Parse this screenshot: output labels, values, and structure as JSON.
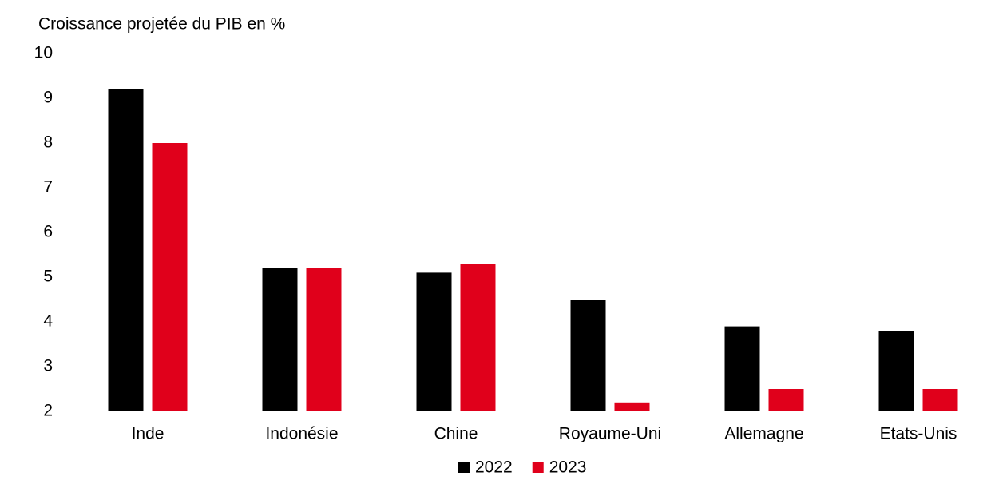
{
  "chart_data": {
    "type": "bar",
    "title": "Croissance projetée du PIB en %",
    "categories": [
      "Inde",
      "Indonésie",
      "Chine",
      "Royaume-Uni",
      "Allemagne",
      "Etats-Unis"
    ],
    "series": [
      {
        "name": "2022",
        "color": "#000000",
        "values": [
          9.2,
          5.2,
          5.1,
          4.5,
          3.9,
          3.8
        ]
      },
      {
        "name": "2023",
        "color": "#e0001b",
        "values": [
          8.0,
          5.2,
          5.3,
          2.2,
          2.5,
          2.5
        ]
      }
    ],
    "ylim": [
      2,
      10
    ],
    "yticks": [
      2,
      3,
      4,
      5,
      6,
      7,
      8,
      9,
      10
    ],
    "grid": false,
    "legend": "bottom"
  }
}
